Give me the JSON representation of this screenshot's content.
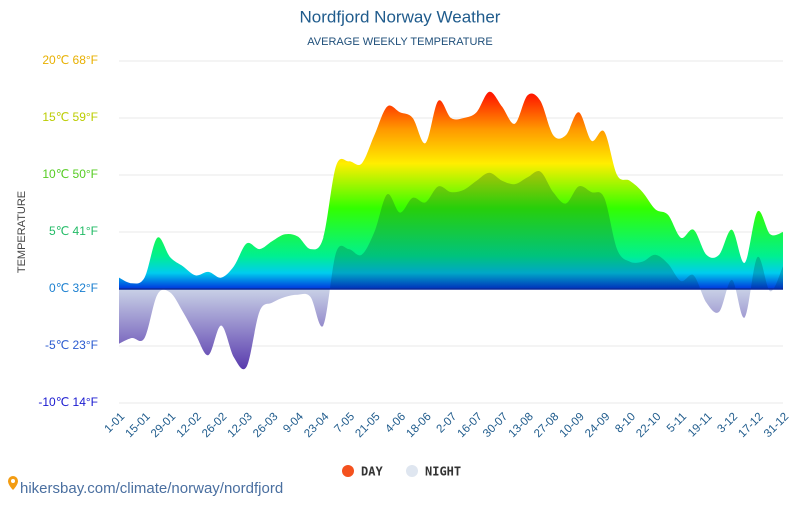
{
  "chart_data": {
    "type": "area",
    "title": "Nordfjord Norway Weather",
    "subtitle": "AVERAGE WEEKLY TEMPERATURE",
    "y_label": "TEMPERATURE",
    "categories": [
      "1-01",
      null,
      "15-01",
      null,
      "29-01",
      null,
      "12-02",
      null,
      "26-02",
      null,
      "12-03",
      null,
      "26-03",
      null,
      "9-04",
      null,
      "23-04",
      null,
      "7-05",
      null,
      "21-05",
      null,
      "4-06",
      null,
      "18-06",
      null,
      "2-07",
      null,
      "16-07",
      null,
      "30-07",
      null,
      "13-08",
      null,
      "27-08",
      null,
      "10-09",
      null,
      "24-09",
      null,
      "8-10",
      null,
      "22-10",
      null,
      "5-11",
      null,
      "19-11",
      null,
      "3-12",
      null,
      "17-12",
      null,
      "31-12"
    ],
    "series": [
      {
        "name": "DAY",
        "color": "#f4511e",
        "values": [
          1,
          0.5,
          1,
          4.5,
          2.8,
          2,
          1.2,
          1.5,
          1,
          2,
          4,
          3.5,
          4.2,
          4.8,
          4.6,
          3.5,
          4.5,
          10.8,
          11.2,
          11,
          13.5,
          16,
          15.5,
          15,
          12.8,
          16.5,
          15,
          15,
          15.5,
          17.3,
          16,
          14.5,
          17,
          16.5,
          13.5,
          13.5,
          15.5,
          13,
          13.8,
          10,
          9.5,
          8.5,
          7,
          6.5,
          4.5,
          5.2,
          3,
          3,
          5.2,
          2.3,
          6.8,
          4.8,
          5
        ]
      },
      {
        "name": "NIGHT",
        "color": "#dfe6f0",
        "values": [
          -4.8,
          -4.3,
          -4.3,
          -0.5,
          -0.3,
          -2,
          -4,
          -5.8,
          -3.2,
          -6,
          -6.8,
          -2,
          -1.2,
          -0.7,
          -0.5,
          -0.7,
          -3.2,
          3.2,
          3.5,
          3,
          5,
          8.3,
          6.7,
          8,
          7.6,
          9,
          8.5,
          8.7,
          9.5,
          10.2,
          9.5,
          9.2,
          9.8,
          10.3,
          8.5,
          7.5,
          9,
          8.5,
          8,
          3.5,
          2.4,
          2.4,
          3,
          2.2,
          0.7,
          1.2,
          -1.2,
          -2,
          0.8,
          -2.5,
          2.8,
          -0.2,
          2
        ]
      }
    ],
    "ylim": [
      -10,
      20
    ],
    "yticks": [
      {
        "value": -10,
        "label": "-10℃ 14°F"
      },
      {
        "value": -5,
        "label": "-5℃ 23°F"
      },
      {
        "value": 0,
        "label": "0℃ 32°F"
      },
      {
        "value": 5,
        "label": "5℃ 41°F"
      },
      {
        "value": 10,
        "label": "10℃ 50°F"
      },
      {
        "value": 15,
        "label": "15℃ 59°F"
      },
      {
        "value": 20,
        "label": "20℃ 68°F"
      }
    ],
    "grid": true,
    "footer": "hikersbay.com/climate/norway/nordfjord"
  }
}
